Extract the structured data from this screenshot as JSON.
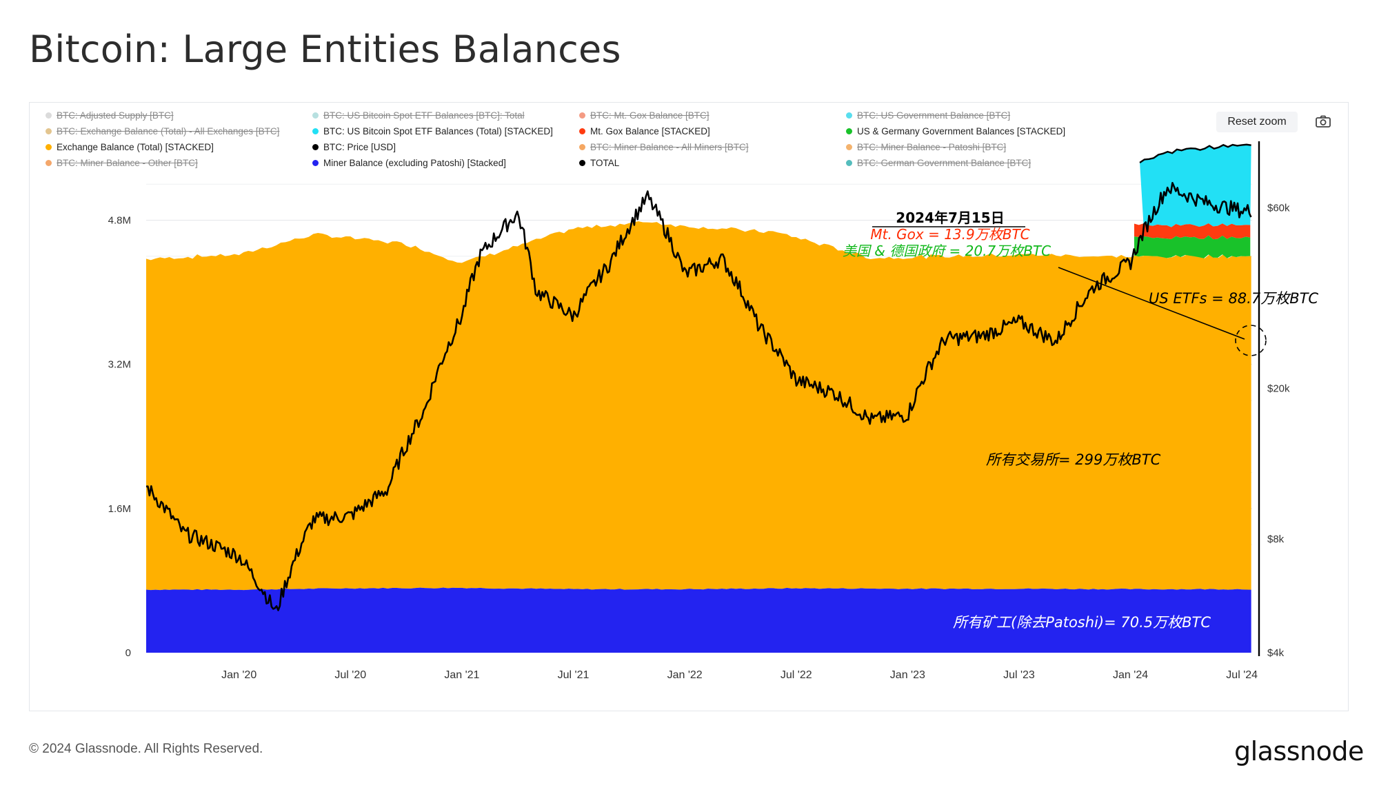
{
  "title": "Bitcoin: Large Entities Balances",
  "toolbar": {
    "reset_zoom": "Reset zoom",
    "camera_icon": "camera-icon"
  },
  "legend": [
    {
      "label": "BTC: Adjusted Supply [BTC]",
      "color": "#cfcfcf",
      "active": false
    },
    {
      "label": "BTC: US Bitcoin Spot ETF Balances [BTC]: Total",
      "color": "#9fd6d6",
      "active": false
    },
    {
      "label": "BTC: Mt. Gox Balance [BTC]",
      "color": "#f07a5a",
      "active": false
    },
    {
      "label": "BTC: US Government Balance [BTC]",
      "color": "#22d3e8",
      "active": false
    },
    {
      "label": "BTC: Exchange Balance (Total) - All Exchanges [BTC]",
      "color": "#d9b26a",
      "active": false
    },
    {
      "label": "BTC: US Bitcoin Spot ETF Balances (Total) [STACKED]",
      "color": "#22e0f5",
      "active": true
    },
    {
      "label": "Mt. Gox Balance [STACKED]",
      "color": "#ff3b10",
      "active": true
    },
    {
      "label": "US & Germany Government Balances [STACKED]",
      "color": "#19c22a",
      "active": true
    },
    {
      "label": "Exchange Balance (Total) [STACKED]",
      "color": "#ffb000",
      "active": true
    },
    {
      "label": "BTC: Price [USD]",
      "color": "#000000",
      "active": true
    },
    {
      "label": "BTC: Miner Balance - All Miners [BTC]",
      "color": "#f28a2e",
      "active": false
    },
    {
      "label": "BTC: Miner Balance - Patoshi [BTC]",
      "color": "#f09a3e",
      "active": false
    },
    {
      "label": "BTC: Miner Balance - Other [BTC]",
      "color": "#f08a3a",
      "active": false
    },
    {
      "label": "Miner Balance (excluding Patoshi) [Stacked]",
      "color": "#2323f0",
      "active": true
    },
    {
      "label": "TOTAL",
      "color": "#000000",
      "active": true
    },
    {
      "label": "BTC: German Government Balance [BTC]",
      "color": "#1ca7a7",
      "active": false
    }
  ],
  "chart_data": {
    "type": "area",
    "x_ticks": [
      "Jan '20",
      "Jul '20",
      "Jan '21",
      "Jul '21",
      "Jan '22",
      "Jul '22",
      "Jan '23",
      "Jul '23",
      "Jan '24",
      "Jul '24"
    ],
    "y_left": {
      "ticks": [
        "0",
        "1.6M",
        "3.2M",
        "4.8M"
      ],
      "values": [
        0,
        1600000,
        3200000,
        4800000
      ],
      "range": [
        0,
        5500000
      ]
    },
    "y_right": {
      "ticks": [
        "$4k",
        "$8k",
        "$20k",
        "$60k"
      ],
      "values": [
        4000,
        8000,
        20000,
        60000
      ],
      "scale": "log"
    },
    "grid": true,
    "annotations": {
      "date_heading": "2024年7月15日",
      "mtgox": "Mt. Gox = 13.9万枚BTC",
      "gov": "美国 & 德国政府 = 20.7万枚BTC",
      "etf": "US ETFs = 88.7万枚BTC",
      "exchanges": "所有交易所= 299万枚BTC",
      "miners": "所有矿工(除去Patoshi)= 70.5万枚BTC"
    },
    "series": [
      {
        "name": "Miner Balance (excluding Patoshi) [Stacked]",
        "color": "#2323f0",
        "x": [
          "2019-08",
          "2020-01",
          "2020-07",
          "2021-01",
          "2021-07",
          "2022-01",
          "2022-07",
          "2023-01",
          "2023-07",
          "2024-01",
          "2024-07"
        ],
        "values": [
          700000,
          700000,
          715000,
          720000,
          705000,
          705000,
          715000,
          710000,
          710000,
          705000,
          705000
        ]
      },
      {
        "name": "Exchange Balance (Total) [STACKED]",
        "color": "#ffb000",
        "x": [
          "2019-08",
          "2020-01",
          "2020-05",
          "2020-07",
          "2020-10",
          "2021-01",
          "2021-04",
          "2021-07",
          "2021-11",
          "2022-01",
          "2022-06",
          "2022-11",
          "2023-01",
          "2023-07",
          "2024-01",
          "2024-07"
        ],
        "values": [
          3670000,
          3720000,
          3930000,
          3890000,
          3820000,
          3610000,
          3800000,
          4000000,
          4080000,
          4030000,
          3950000,
          3670000,
          3680000,
          3710000,
          3690000,
          3700000
        ]
      },
      {
        "name": "US & Germany Government Balances [STACKED]",
        "color": "#19c22a",
        "x": [
          "2024-01",
          "2024-07"
        ],
        "values": [
          207000,
          207000
        ]
      },
      {
        "name": "Mt. Gox Balance [STACKED]",
        "color": "#ff3b10",
        "x": [
          "2024-01",
          "2024-07"
        ],
        "values": [
          139000,
          139000
        ]
      },
      {
        "name": "BTC: US Bitcoin Spot ETF Balances (Total) [STACKED]",
        "color": "#22e0f5",
        "x": [
          "2024-01",
          "2024-03",
          "2024-05",
          "2024-07"
        ],
        "values": [
          650000,
          820000,
          860000,
          887000
        ]
      },
      {
        "name": "BTC: Price [USD]",
        "color": "#000000",
        "axis": "right",
        "x": [
          "2019-08",
          "2019-10",
          "2020-01",
          "2020-03",
          "2020-05",
          "2020-07",
          "2020-09",
          "2020-11",
          "2021-01",
          "2021-02",
          "2021-04",
          "2021-05",
          "2021-07",
          "2021-09",
          "2021-11",
          "2022-01",
          "2022-03",
          "2022-05",
          "2022-07",
          "2022-09",
          "2022-11",
          "2023-01",
          "2023-03",
          "2023-05",
          "2023-07",
          "2023-09",
          "2023-11",
          "2024-01",
          "2024-03",
          "2024-05",
          "2024-07"
        ],
        "values": [
          11000,
          8300,
          7200,
          5100,
          9000,
          9200,
          10800,
          17500,
          31000,
          45000,
          58000,
          36000,
          31000,
          43000,
          64000,
          40000,
          44000,
          29000,
          21000,
          19500,
          16500,
          17000,
          27000,
          27500,
          30000,
          26500,
          37000,
          43000,
          68000,
          62000,
          59000
        ]
      }
    ]
  },
  "footer": {
    "copyright": "© 2024 Glassnode. All Rights Reserved.",
    "brand": "glassnode"
  }
}
